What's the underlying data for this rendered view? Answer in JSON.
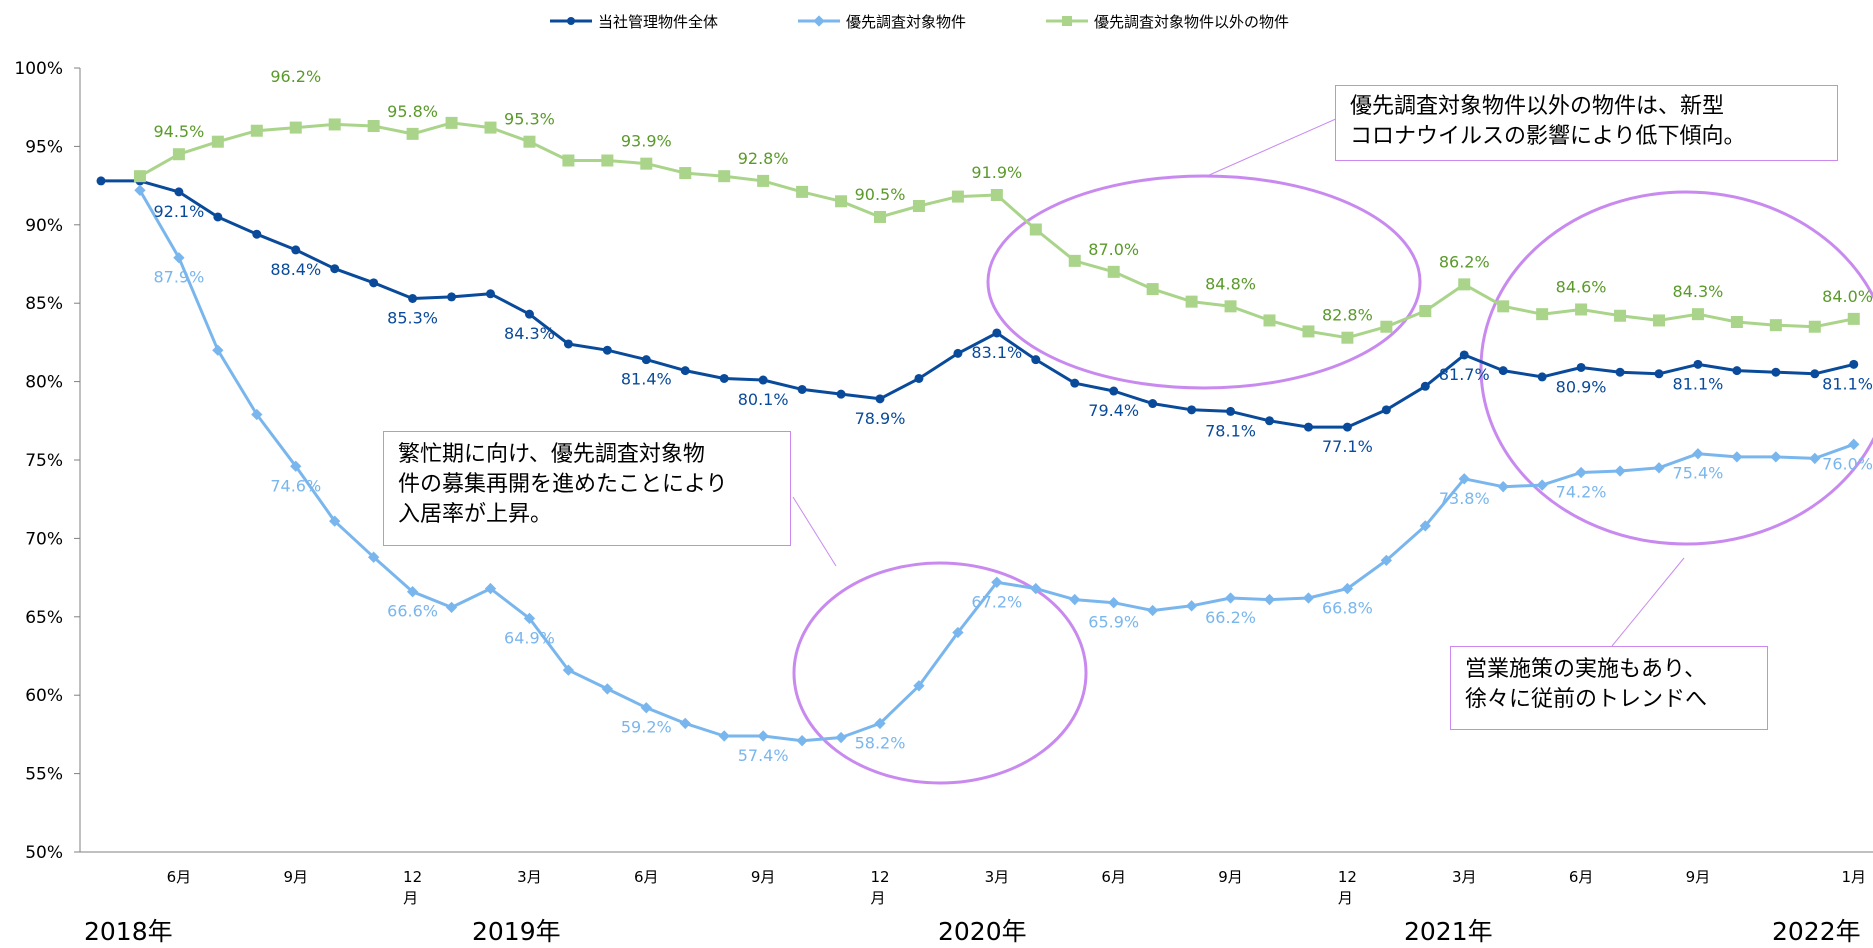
{
  "chart_data": {
    "type": "line",
    "ylim": [
      50,
      100
    ],
    "y_ticks": [
      "50%",
      "55%",
      "60%",
      "65%",
      "70%",
      "75%",
      "80%",
      "85%",
      "90%",
      "95%",
      "100%"
    ],
    "x_month_ticks": [
      {
        "i": 2,
        "label": "6月"
      },
      {
        "i": 5,
        "label": "9月"
      },
      {
        "i": 8,
        "label": "12",
        "sub": "月"
      },
      {
        "i": 11,
        "label": "3月"
      },
      {
        "i": 14,
        "label": "6月"
      },
      {
        "i": 17,
        "label": "9月"
      },
      {
        "i": 20,
        "label": "12",
        "sub": "月"
      },
      {
        "i": 23,
        "label": "3月"
      },
      {
        "i": 26,
        "label": "6月"
      },
      {
        "i": 29,
        "label": "9月"
      },
      {
        "i": 32,
        "label": "12",
        "sub": "月"
      },
      {
        "i": 35,
        "label": "3月"
      },
      {
        "i": 38,
        "label": "6月"
      },
      {
        "i": 41,
        "label": "9月"
      },
      {
        "i": 45,
        "label": "1月"
      }
    ],
    "year_labels": [
      "2018年",
      "2019年",
      "2020年",
      "2021年",
      "2022年"
    ],
    "x": [
      "2018-04",
      "2018-05",
      "2018-06",
      "2018-07",
      "2018-08",
      "2018-09",
      "2018-10",
      "2018-11",
      "2018-12",
      "2019-01",
      "2019-02",
      "2019-03",
      "2019-04",
      "2019-05",
      "2019-06",
      "2019-07",
      "2019-08",
      "2019-09",
      "2019-10",
      "2019-11",
      "2019-12",
      "2020-01",
      "2020-02",
      "2020-03",
      "2020-04",
      "2020-05",
      "2020-06",
      "2020-07",
      "2020-08",
      "2020-09",
      "2020-10",
      "2020-11",
      "2020-12",
      "2021-01",
      "2021-02",
      "2021-03",
      "2021-04",
      "2021-05",
      "2021-06",
      "2021-07",
      "2021-08",
      "2021-09",
      "2021-10",
      "2021-11",
      "2021-12",
      "2022-01"
    ],
    "series": [
      {
        "name": "当社管理物件全体",
        "color": "#0a4a9a",
        "marker": "circle",
        "values": [
          92.8,
          92.8,
          92.1,
          90.5,
          89.4,
          88.4,
          87.2,
          86.3,
          85.3,
          85.4,
          85.6,
          84.3,
          82.4,
          82.0,
          81.4,
          80.7,
          80.2,
          80.1,
          79.5,
          79.2,
          78.9,
          80.2,
          81.8,
          83.1,
          81.4,
          79.9,
          79.4,
          78.6,
          78.2,
          78.1,
          77.5,
          77.1,
          77.1,
          78.2,
          79.7,
          81.7,
          80.7,
          80.3,
          80.9,
          80.6,
          80.5,
          81.1,
          80.7,
          80.6,
          80.5,
          81.1
        ],
        "labels": [
          {
            "i": 2,
            "text": "92.1%"
          },
          {
            "i": 5,
            "text": "88.4%"
          },
          {
            "i": 8,
            "text": "85.3%"
          },
          {
            "i": 11,
            "text": "84.3%"
          },
          {
            "i": 14,
            "text": "81.4%"
          },
          {
            "i": 17,
            "text": "80.1%"
          },
          {
            "i": 20,
            "text": "78.9%"
          },
          {
            "i": 23,
            "text": "83.1%"
          },
          {
            "i": 26,
            "text": "79.4%"
          },
          {
            "i": 29,
            "text": "78.1%"
          },
          {
            "i": 32,
            "text": "77.1%"
          },
          {
            "i": 35,
            "text": "81.7%"
          },
          {
            "i": 38,
            "text": "80.9%"
          },
          {
            "i": 41,
            "text": "81.1%"
          },
          {
            "i": 45,
            "text": "81.1%"
          }
        ]
      },
      {
        "name": "優先調査対象物件",
        "color": "#7ab6ee",
        "marker": "diamond",
        "values": [
          null,
          92.2,
          87.9,
          82.0,
          77.9,
          74.6,
          71.1,
          68.8,
          66.6,
          65.6,
          66.8,
          64.9,
          61.6,
          60.4,
          59.2,
          58.2,
          57.4,
          57.4,
          57.1,
          57.3,
          58.2,
          60.6,
          64.0,
          67.2,
          66.8,
          66.1,
          65.9,
          65.4,
          65.7,
          66.2,
          66.1,
          66.2,
          66.8,
          68.6,
          70.8,
          73.8,
          73.3,
          73.4,
          74.2,
          74.3,
          74.5,
          75.4,
          75.2,
          75.2,
          75.1,
          76.0
        ],
        "labels": [
          {
            "i": 2,
            "text": "87.9%"
          },
          {
            "i": 5,
            "text": "74.6%"
          },
          {
            "i": 8,
            "text": "66.6%"
          },
          {
            "i": 11,
            "text": "64.9%"
          },
          {
            "i": 14,
            "text": "59.2%"
          },
          {
            "i": 17,
            "text": "57.4%"
          },
          {
            "i": 20,
            "text": "58.2%"
          },
          {
            "i": 23,
            "text": "67.2%"
          },
          {
            "i": 26,
            "text": "65.9%"
          },
          {
            "i": 29,
            "text": "66.2%"
          },
          {
            "i": 32,
            "text": "66.8%"
          },
          {
            "i": 35,
            "text": "73.8%"
          },
          {
            "i": 38,
            "text": "74.2%"
          },
          {
            "i": 41,
            "text": "75.4%"
          },
          {
            "i": 45,
            "text": "76.0%"
          }
        ]
      },
      {
        "name": "優先調査対象物件以外の物件",
        "color": "#a9d48a",
        "marker": "square",
        "values": [
          null,
          93.1,
          94.5,
          95.3,
          96.0,
          96.2,
          96.4,
          96.3,
          95.8,
          96.5,
          96.2,
          95.3,
          94.1,
          94.1,
          93.9,
          93.3,
          93.1,
          92.8,
          92.1,
          91.5,
          90.5,
          91.2,
          91.8,
          91.9,
          89.7,
          87.7,
          87.0,
          85.9,
          85.1,
          84.8,
          83.9,
          83.2,
          82.8,
          83.5,
          84.5,
          86.2,
          84.8,
          84.3,
          84.6,
          84.2,
          83.9,
          84.3,
          83.8,
          83.6,
          83.5,
          84.0
        ],
        "labels": [
          {
            "i": 2,
            "text": "94.5%"
          },
          {
            "i": 5,
            "text": "96.2%"
          },
          {
            "i": 8,
            "text": "95.8%"
          },
          {
            "i": 11,
            "text": "95.3%"
          },
          {
            "i": 14,
            "text": "93.9%"
          },
          {
            "i": 17,
            "text": "92.8%"
          },
          {
            "i": 20,
            "text": "90.5%"
          },
          {
            "i": 23,
            "text": "91.9%"
          },
          {
            "i": 26,
            "text": "87.0%"
          },
          {
            "i": 29,
            "text": "84.8%"
          },
          {
            "i": 32,
            "text": "82.8%"
          },
          {
            "i": 35,
            "text": "86.2%"
          },
          {
            "i": 38,
            "text": "84.6%"
          },
          {
            "i": 41,
            "text": "84.3%"
          },
          {
            "i": 45,
            "text": "84.0%"
          }
        ]
      }
    ]
  },
  "callouts": {
    "top_right": {
      "line1": "優先調査対象物件以外の物件は、新型",
      "line2": "コロナウイルスの影響により低下傾向。"
    },
    "middle_left": {
      "line1": "繁忙期に向け、優先調査対象物",
      "line2": "件の募集再開を進めたことにより",
      "line3": "入居率が上昇。"
    },
    "bottom_right": {
      "line1": "営業施策の実施もあり、",
      "line2": "徐々に従前のトレンドへ"
    }
  },
  "colors": {
    "highlight": "#c98af0",
    "axis": "#808080"
  }
}
